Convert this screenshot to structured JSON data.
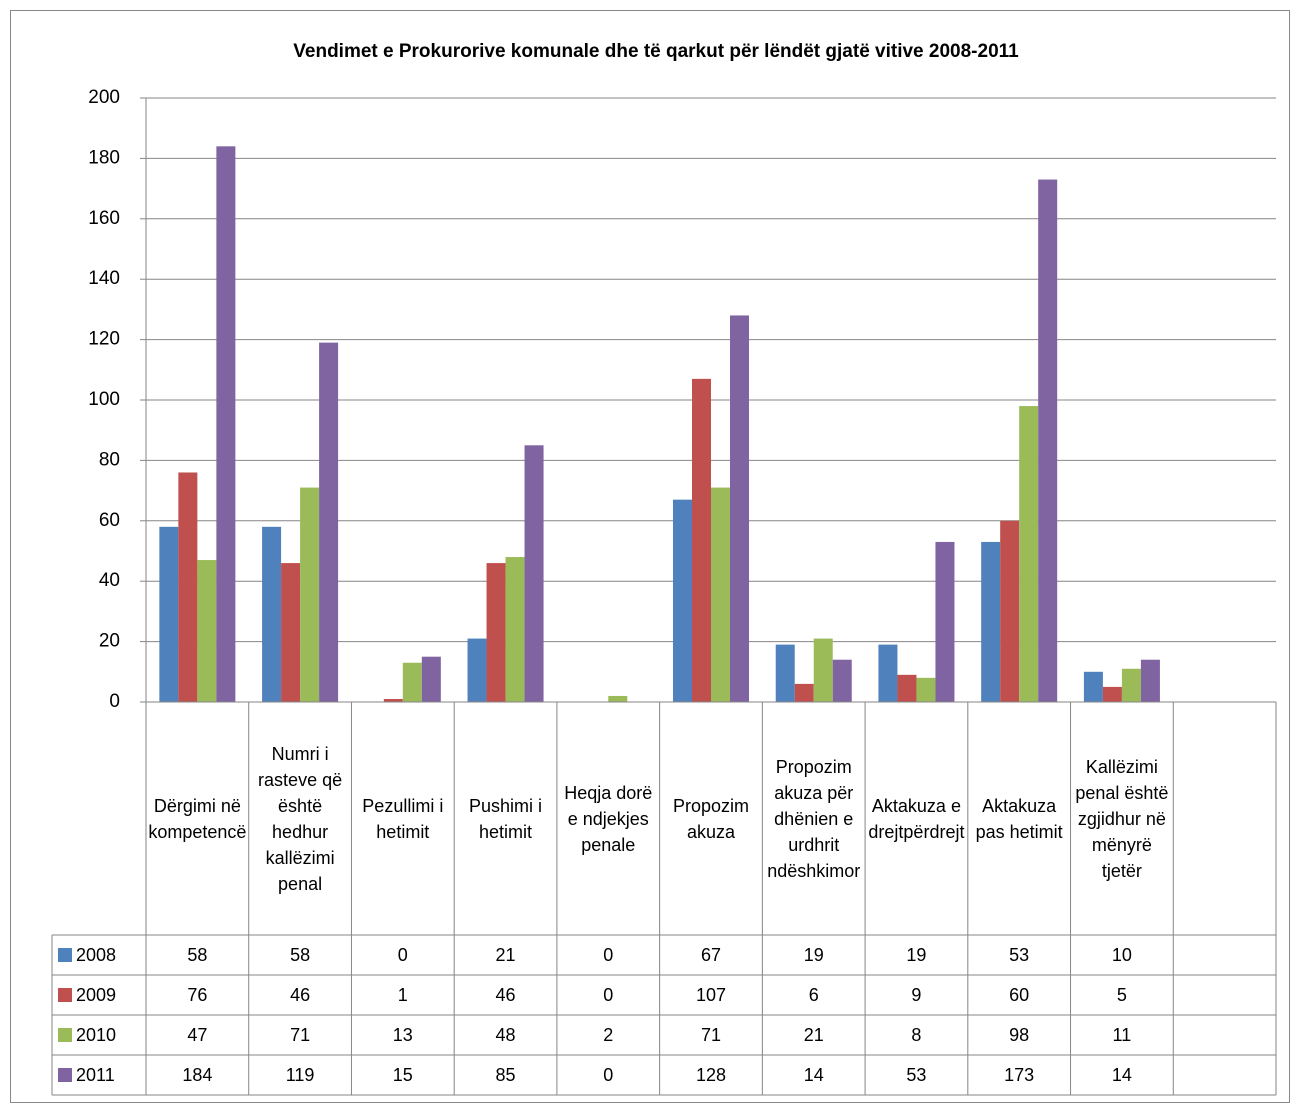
{
  "chart_data": {
    "type": "bar",
    "title": "Vendimet e Prokurorive komunale dhe të qarkut për lëndët gjatë vitive 2008-2011",
    "categories": [
      "Dërgimi në kompetencë",
      "Numri i rasteve që është hedhur kallëzimi penal",
      "Pezullimi i hetimit",
      "Pushimi i hetimit",
      "Heqja dorë e ndjekjes penale",
      "Propozim akuza",
      "Propozim akuza për dhënien e urdhrit ndëshkimor",
      "Aktakuza e drejtpërdrejt",
      "Aktakuza pas hetimit",
      "Kallëzimi penal është zgjidhur në mënyrë tjetër",
      null
    ],
    "series": [
      {
        "name": "2008",
        "color": "#4f81bd",
        "values": [
          58,
          58,
          0,
          21,
          0,
          67,
          19,
          19,
          53,
          10,
          null
        ]
      },
      {
        "name": "2009",
        "color": "#c0504d",
        "values": [
          76,
          46,
          1,
          46,
          0,
          107,
          6,
          9,
          60,
          5,
          null
        ]
      },
      {
        "name": "2010",
        "color": "#9bbb59",
        "values": [
          47,
          71,
          13,
          48,
          2,
          71,
          21,
          8,
          98,
          11,
          null
        ]
      },
      {
        "name": "2011",
        "color": "#8064a2",
        "values": [
          184,
          119,
          15,
          85,
          0,
          128,
          14,
          53,
          173,
          14,
          null
        ]
      }
    ],
    "ylim": [
      0,
      200
    ],
    "yticks": [
      0,
      20,
      40,
      60,
      80,
      100,
      120,
      140,
      160,
      180,
      200
    ],
    "grid": true
  }
}
